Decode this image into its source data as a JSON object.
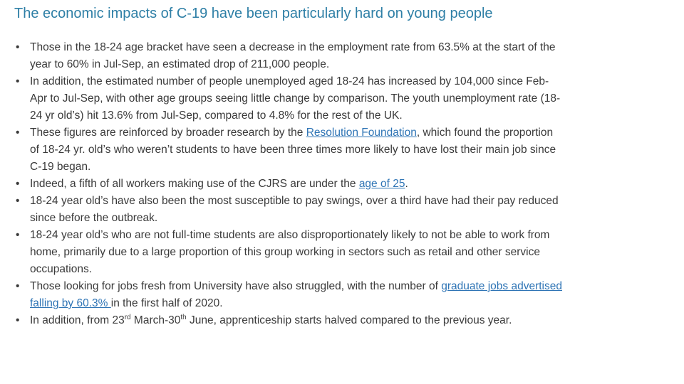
{
  "title": "The economic impacts of C-19 have been particularly hard on young people",
  "bullets": [
    {
      "parts": [
        {
          "text": "Those in the 18-24 age bracket have seen a decrease in the employment rate from 63.5% at the start of the year to 60% in Jul-Sep, an estimated drop of 211,000 people."
        }
      ]
    },
    {
      "parts": [
        {
          "text": "In addition, the estimated number of people unemployed aged 18-24 has increased by 104,000 since Feb-Apr to Jul-Sep, with other age groups seeing little change by comparison. The youth unemployment rate (18-24 yr old’s) hit 13.6% from Jul-Sep, compared to 4.8% for the rest of the UK."
        }
      ]
    },
    {
      "parts": [
        {
          "text": "These figures are reinforced by broader research by the "
        },
        {
          "text": "Resolution Foundation",
          "kind": "link"
        },
        {
          "text": ", which found the proportion of 18-24 yr. old’s who weren’t students to have been three times more likely to have lost their main job since C-19 began."
        }
      ]
    },
    {
      "parts": [
        {
          "text": "Indeed, a fifth of all workers making use of the CJRS are under the "
        },
        {
          "text": "age of 25",
          "kind": "link"
        },
        {
          "text": "."
        }
      ]
    },
    {
      "parts": [
        {
          "text": "18-24 year old’s have also been the most susceptible to pay swings, over a third have had their pay reduced since before the outbreak."
        }
      ]
    },
    {
      "parts": [
        {
          "text": "18-24 year old’s who are not full-time students are also disproportionately likely to  not be able to work from home, primarily due to a large proportion of this group working in sectors such as retail and other service occupations."
        }
      ]
    },
    {
      "parts": [
        {
          "text": "Those looking for jobs fresh from University have also struggled, with the number of "
        },
        {
          "text": "graduate jobs advertised falling by 60.3% ",
          "kind": "link"
        },
        {
          "text": "in the first half of 2020."
        }
      ]
    },
    {
      "parts": [
        {
          "text": "In addition, from 23"
        },
        {
          "text": "rd",
          "kind": "sup"
        },
        {
          "text": " March-30"
        },
        {
          "text": "th",
          "kind": "sup"
        },
        {
          "text": " June, apprenticeship starts halved compared to the previous year."
        }
      ]
    }
  ]
}
